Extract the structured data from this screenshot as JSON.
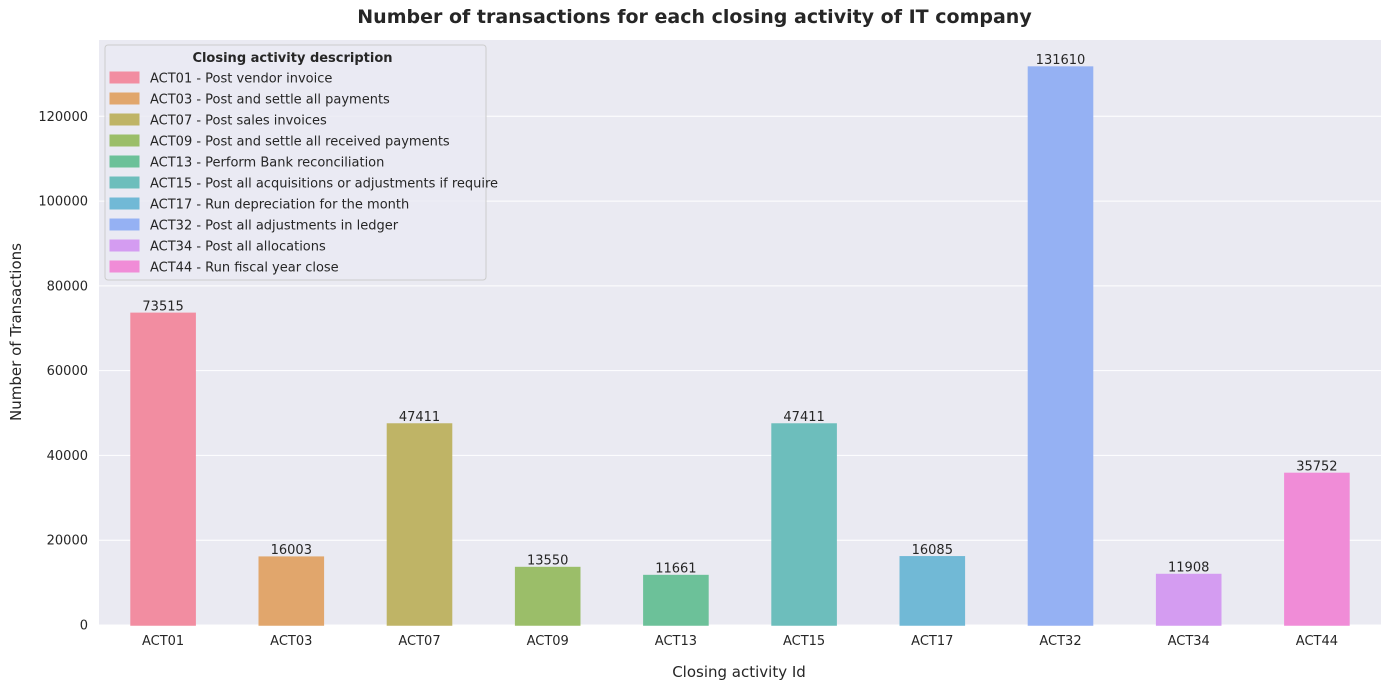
{
  "chart_data": {
    "type": "bar",
    "title": "Number of transactions for each closing activity of IT company",
    "xlabel": "Closing activity Id",
    "ylabel": "Number of Transactions",
    "categories": [
      "ACT01",
      "ACT03",
      "ACT07",
      "ACT09",
      "ACT13",
      "ACT15",
      "ACT17",
      "ACT32",
      "ACT34",
      "ACT44"
    ],
    "values": [
      73515,
      16003,
      47411,
      13550,
      11661,
      47411,
      16085,
      131610,
      11908,
      35752
    ],
    "data_labels": [
      "73515",
      "16003",
      "47411",
      "13550",
      "11661",
      "47411",
      "16085",
      "131610",
      "11908",
      "35752"
    ],
    "colors": [
      "#f28da1",
      "#e1a66c",
      "#bfb466",
      "#9bbe69",
      "#6cc199",
      "#6dbebc",
      "#71b9d6",
      "#95b1f3",
      "#d49cf1",
      "#f08cd7"
    ],
    "ylim": [
      0,
      138000
    ],
    "yticks": [
      0,
      20000,
      40000,
      60000,
      80000,
      100000,
      120000
    ],
    "ytick_labels": [
      "0",
      "20000",
      "40000",
      "60000",
      "80000",
      "100000",
      "120000"
    ],
    "grid": true,
    "legend": {
      "placement": "top-left",
      "title": "Closing activity description",
      "entries": [
        "ACT01 - Post vendor invoice",
        "ACT03 - Post and settle all payments",
        "ACT07 - Post sales invoices",
        "ACT09 - Post and settle all received payments",
        "ACT13 - Perform Bank reconciliation",
        "ACT15 - Post all acquisitions or adjustments if require",
        "ACT17 - Run depreciation for the month",
        "ACT32 - Post all adjustments in ledger",
        "ACT34 - Post all allocations",
        "ACT44 - Run fiscal year close"
      ]
    }
  }
}
